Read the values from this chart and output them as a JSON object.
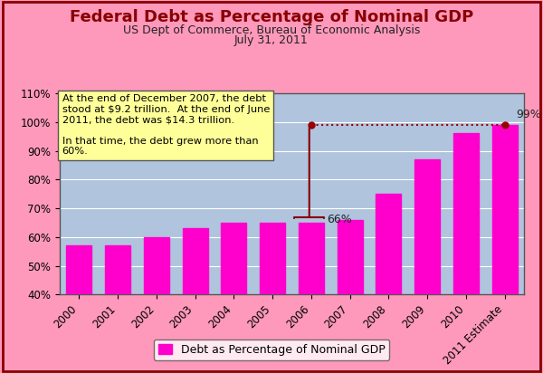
{
  "title": "Federal Debt as Percentage of Nominal GDP",
  "subtitle1": "US Dept of Commerce, Bureau of Economic Analysis",
  "subtitle2": "July 31, 2011",
  "categories": [
    "2000",
    "2001",
    "2002",
    "2003",
    "2004",
    "2005",
    "2006",
    "2007",
    "2008",
    "2009",
    "2010",
    "2011 Estimate"
  ],
  "values": [
    57,
    57,
    60,
    63,
    65,
    65,
    65,
    66,
    75,
    87,
    96,
    99
  ],
  "bar_color": "#FF00CC",
  "background_color": "#FF99BB",
  "plot_bg_color": "#B0C4DE",
  "ylim": [
    40,
    110
  ],
  "yticks": [
    40,
    50,
    60,
    70,
    80,
    90,
    100,
    110
  ],
  "legend_label": "Debt as Percentage of Nominal GDP",
  "legend_color": "#FF00CC",
  "annotation_box_text": "At the end of December 2007, the debt\nstood at $9.2 trillion.  At the end of June\n2011, the debt was $14.3 trillion.\n\nIn that time, the debt grew more than\n60%.",
  "annotation_box_bg": "#FFFF99",
  "annotation_box_edge": "#555555",
  "title_color": "#880000",
  "title_fontsize": 13,
  "subtitle_fontsize": 9,
  "subtitle_color": "#222222"
}
